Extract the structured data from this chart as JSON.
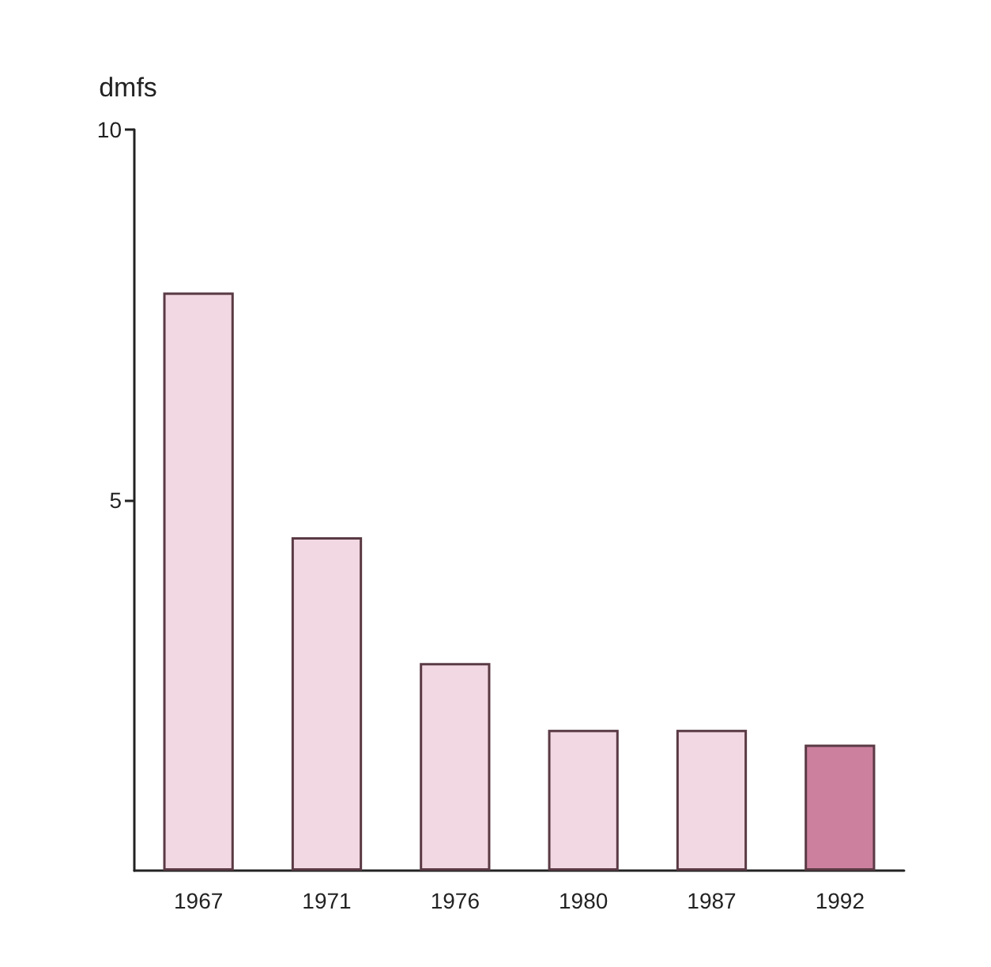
{
  "chart_data": {
    "type": "bar",
    "ylabel": "dmfs",
    "categories": [
      "1967",
      "1971",
      "1976",
      "1980",
      "1987",
      "1992"
    ],
    "values": [
      7.8,
      4.5,
      2.8,
      1.9,
      1.9,
      1.7
    ],
    "colors": [
      "#f2d8e2",
      "#f2d8e2",
      "#f2d8e2",
      "#f2d8e2",
      "#f2d8e2",
      "#cc809e"
    ],
    "ylim": [
      0,
      10
    ],
    "yticks": [
      5,
      10
    ],
    "grid": false
  }
}
